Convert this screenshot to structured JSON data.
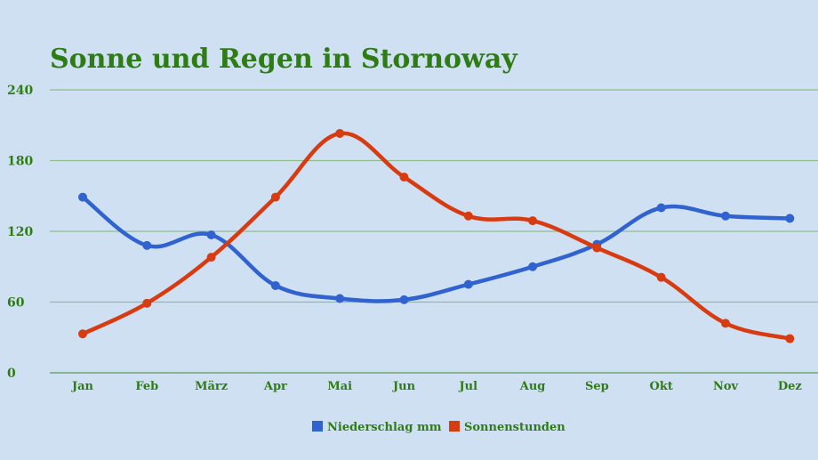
{
  "chart_data": {
    "type": "line",
    "title": "Sonne und Regen in Stornoway",
    "categories": [
      "Jan",
      "Feb",
      "März",
      "Apr",
      "Mai",
      "Jun",
      "Jul",
      "Aug",
      "Sep",
      "Okt",
      "Nov",
      "Dez"
    ],
    "yticks": [
      "0",
      "60",
      "120",
      "180",
      "240"
    ],
    "ylim": [
      0,
      240
    ],
    "grid": true,
    "legend_position": "bottom",
    "series": [
      {
        "name": "Niederschlag mm",
        "color": "#3063d0",
        "values": [
          149,
          108,
          117,
          74,
          63,
          62,
          75,
          90,
          109,
          140,
          133,
          131
        ]
      },
      {
        "name": "Sonnenstunden",
        "color": "#d83b10",
        "values": [
          33,
          59,
          98,
          149,
          203,
          166,
          133,
          129,
          106,
          81,
          42,
          29
        ]
      }
    ]
  }
}
